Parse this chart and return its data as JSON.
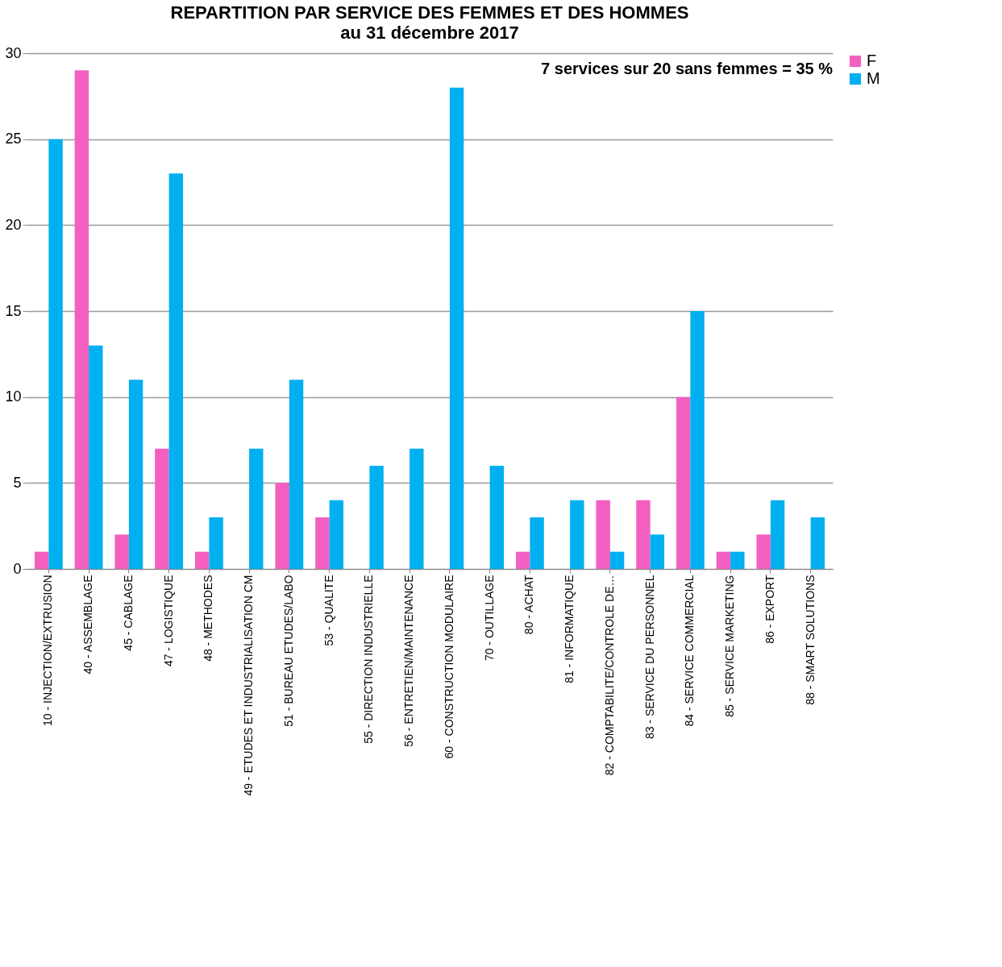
{
  "chart_data": {
    "type": "bar",
    "title": "REPARTITION PAR SERVICE DES FEMMES ET DES HOMMES",
    "subtitle": "au 31 décembre 2017",
    "categories": [
      "10 - INJECTION/EXTRUSION",
      "40 - ASSEMBLAGE",
      "45 - CABLAGE",
      "47 - LOGISTIQUE",
      "48 - METHODES",
      "49 - ETUDES ET INDUSTRIALISATION CM",
      "51 - BUREAU ETUDES/LABO",
      "53 - QUALITE",
      "55 - DIRECTION INDUSTRIELLE",
      "56 - ENTRETIEN/MAINTENANCE",
      "60 - CONSTRUCTION MODULAIRE",
      "70 - OUTILLAGE",
      "80 - ACHAT",
      "81 - INFORMATIQUE",
      "82 - COMPTABILITE/CONTROLE DE…",
      "83 - SERVICE DU PERSONNEL",
      "84 - SERVICE COMMERCIAL",
      "85 - SERVICE MARKETING",
      "86 - EXPORT",
      "88 - SMART SOLUTIONS"
    ],
    "series": [
      {
        "name": "F",
        "color": "#f35fc0",
        "values": [
          1,
          29,
          2,
          7,
          1,
          0,
          5,
          3,
          0,
          0,
          0,
          0,
          1,
          0,
          4,
          4,
          10,
          1,
          2,
          0
        ]
      },
      {
        "name": "M",
        "color": "#00b0f0",
        "values": [
          25,
          13,
          11,
          23,
          3,
          7,
          11,
          4,
          6,
          7,
          28,
          6,
          3,
          4,
          1,
          2,
          15,
          1,
          4,
          3
        ]
      }
    ],
    "ylim": [
      0,
      30
    ],
    "yticks": [
      0,
      5,
      10,
      15,
      20,
      25,
      30
    ],
    "grid": "y",
    "legend": "right",
    "annotations": [
      "7 services sur 20 sans femmes = 35 %"
    ]
  }
}
